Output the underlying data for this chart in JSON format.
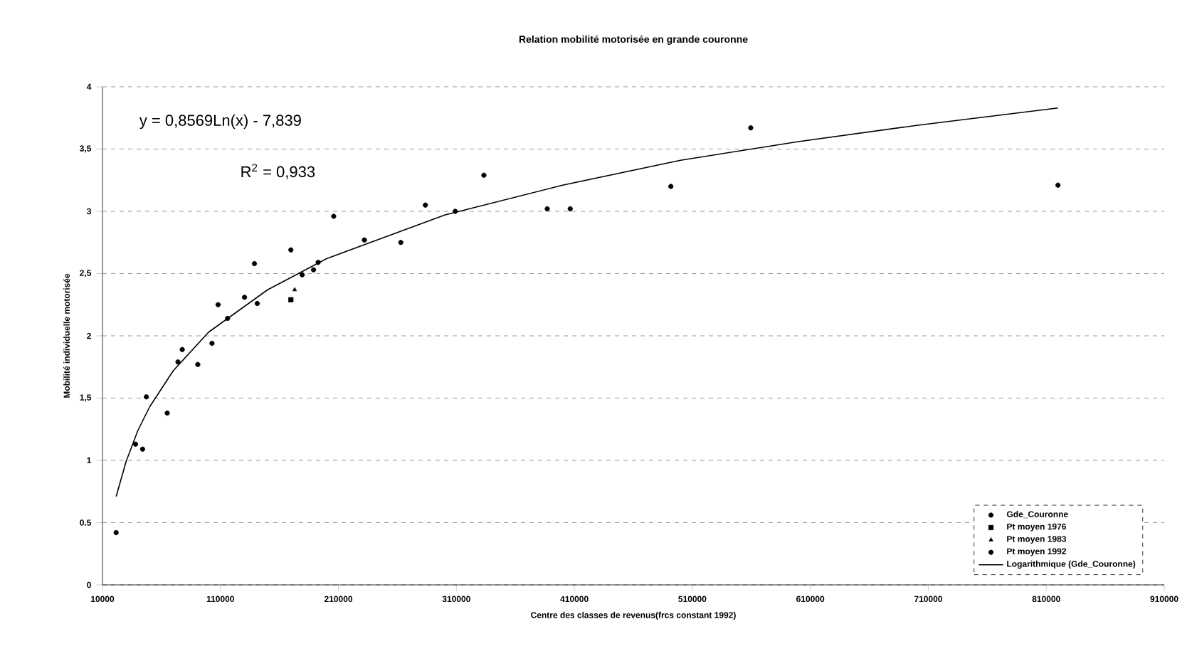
{
  "chart_data": {
    "type": "scatter",
    "title": "Relation mobilité motorisée en grande couronne",
    "xlabel": "Centre des classes de revenus(frcs constant 1992)",
    "ylabel": "Mobilité individuelle motorisée",
    "annotations": [
      "y = 0,8569Ln(x) - 7,839",
      "R$^{2}$ = 0,933"
    ],
    "series": [
      {
        "name": "Gde_Couronne",
        "color": "#000000",
        "marker": "circle",
        "x": [
          21600,
          38000,
          44000,
          47200,
          64900,
          74000,
          77600,
          90800,
          102800,
          108000,
          116000,
          130400,
          138800,
          141200,
          169700,
          188900,
          192800,
          206000,
          232000,
          262900,
          283700,
          309000,
          333300,
          387000,
          406500,
          491800,
          559500,
          819900
        ],
        "values": [
          0.42,
          1.13,
          1.09,
          1.51,
          1.38,
          1.79,
          1.89,
          1.77,
          1.94,
          2.25,
          2.14,
          2.31,
          2.58,
          2.26,
          2.69,
          2.53,
          2.59,
          2.96,
          2.77,
          2.75,
          3.05,
          3.0,
          3.29,
          3.02,
          3.02,
          3.2,
          3.67,
          3.21
        ]
      },
      {
        "name": "Pt moyen 1976",
        "color": "#000000",
        "marker": "square",
        "x": [
          169700
        ],
        "values": [
          2.29
        ]
      },
      {
        "name": "Pt moyen 1983",
        "color": "#000000",
        "marker": "triangle",
        "x": [
          172900
        ],
        "values": [
          2.37
        ]
      },
      {
        "name": "Pt moyen 1992",
        "color": "#000000",
        "marker": "circle",
        "x": [
          179300
        ],
        "values": [
          2.49
        ]
      },
      {
        "name": "Logarithmique (Gde_Couronne)",
        "type": "line",
        "color": "#000000",
        "marker": "none",
        "x": [
          21600,
          30000,
          40000,
          50000,
          70000,
          100000,
          150000,
          200000,
          300000,
          400000,
          500000,
          600000,
          700000,
          819900
        ],
        "values": [
          0.71,
          0.99,
          1.24,
          1.43,
          1.72,
          2.03,
          2.37,
          2.62,
          2.97,
          3.21,
          3.41,
          3.56,
          3.69,
          3.83
        ]
      }
    ],
    "xlim": [
      10000,
      910000
    ],
    "xticks": [
      10000,
      110000,
      210000,
      310000,
      410000,
      510000,
      610000,
      710000,
      810000,
      910000
    ],
    "ylim": [
      0,
      4
    ],
    "yticks": [
      0,
      0.5,
      1,
      {
        "value": 1.5,
        "label": "1,5"
      },
      2,
      {
        "value": 2.5,
        "label": "2,5"
      },
      3,
      {
        "value": 3.5,
        "label": "3,5"
      },
      4
    ],
    "grid": "y",
    "legend": "bottom right"
  }
}
